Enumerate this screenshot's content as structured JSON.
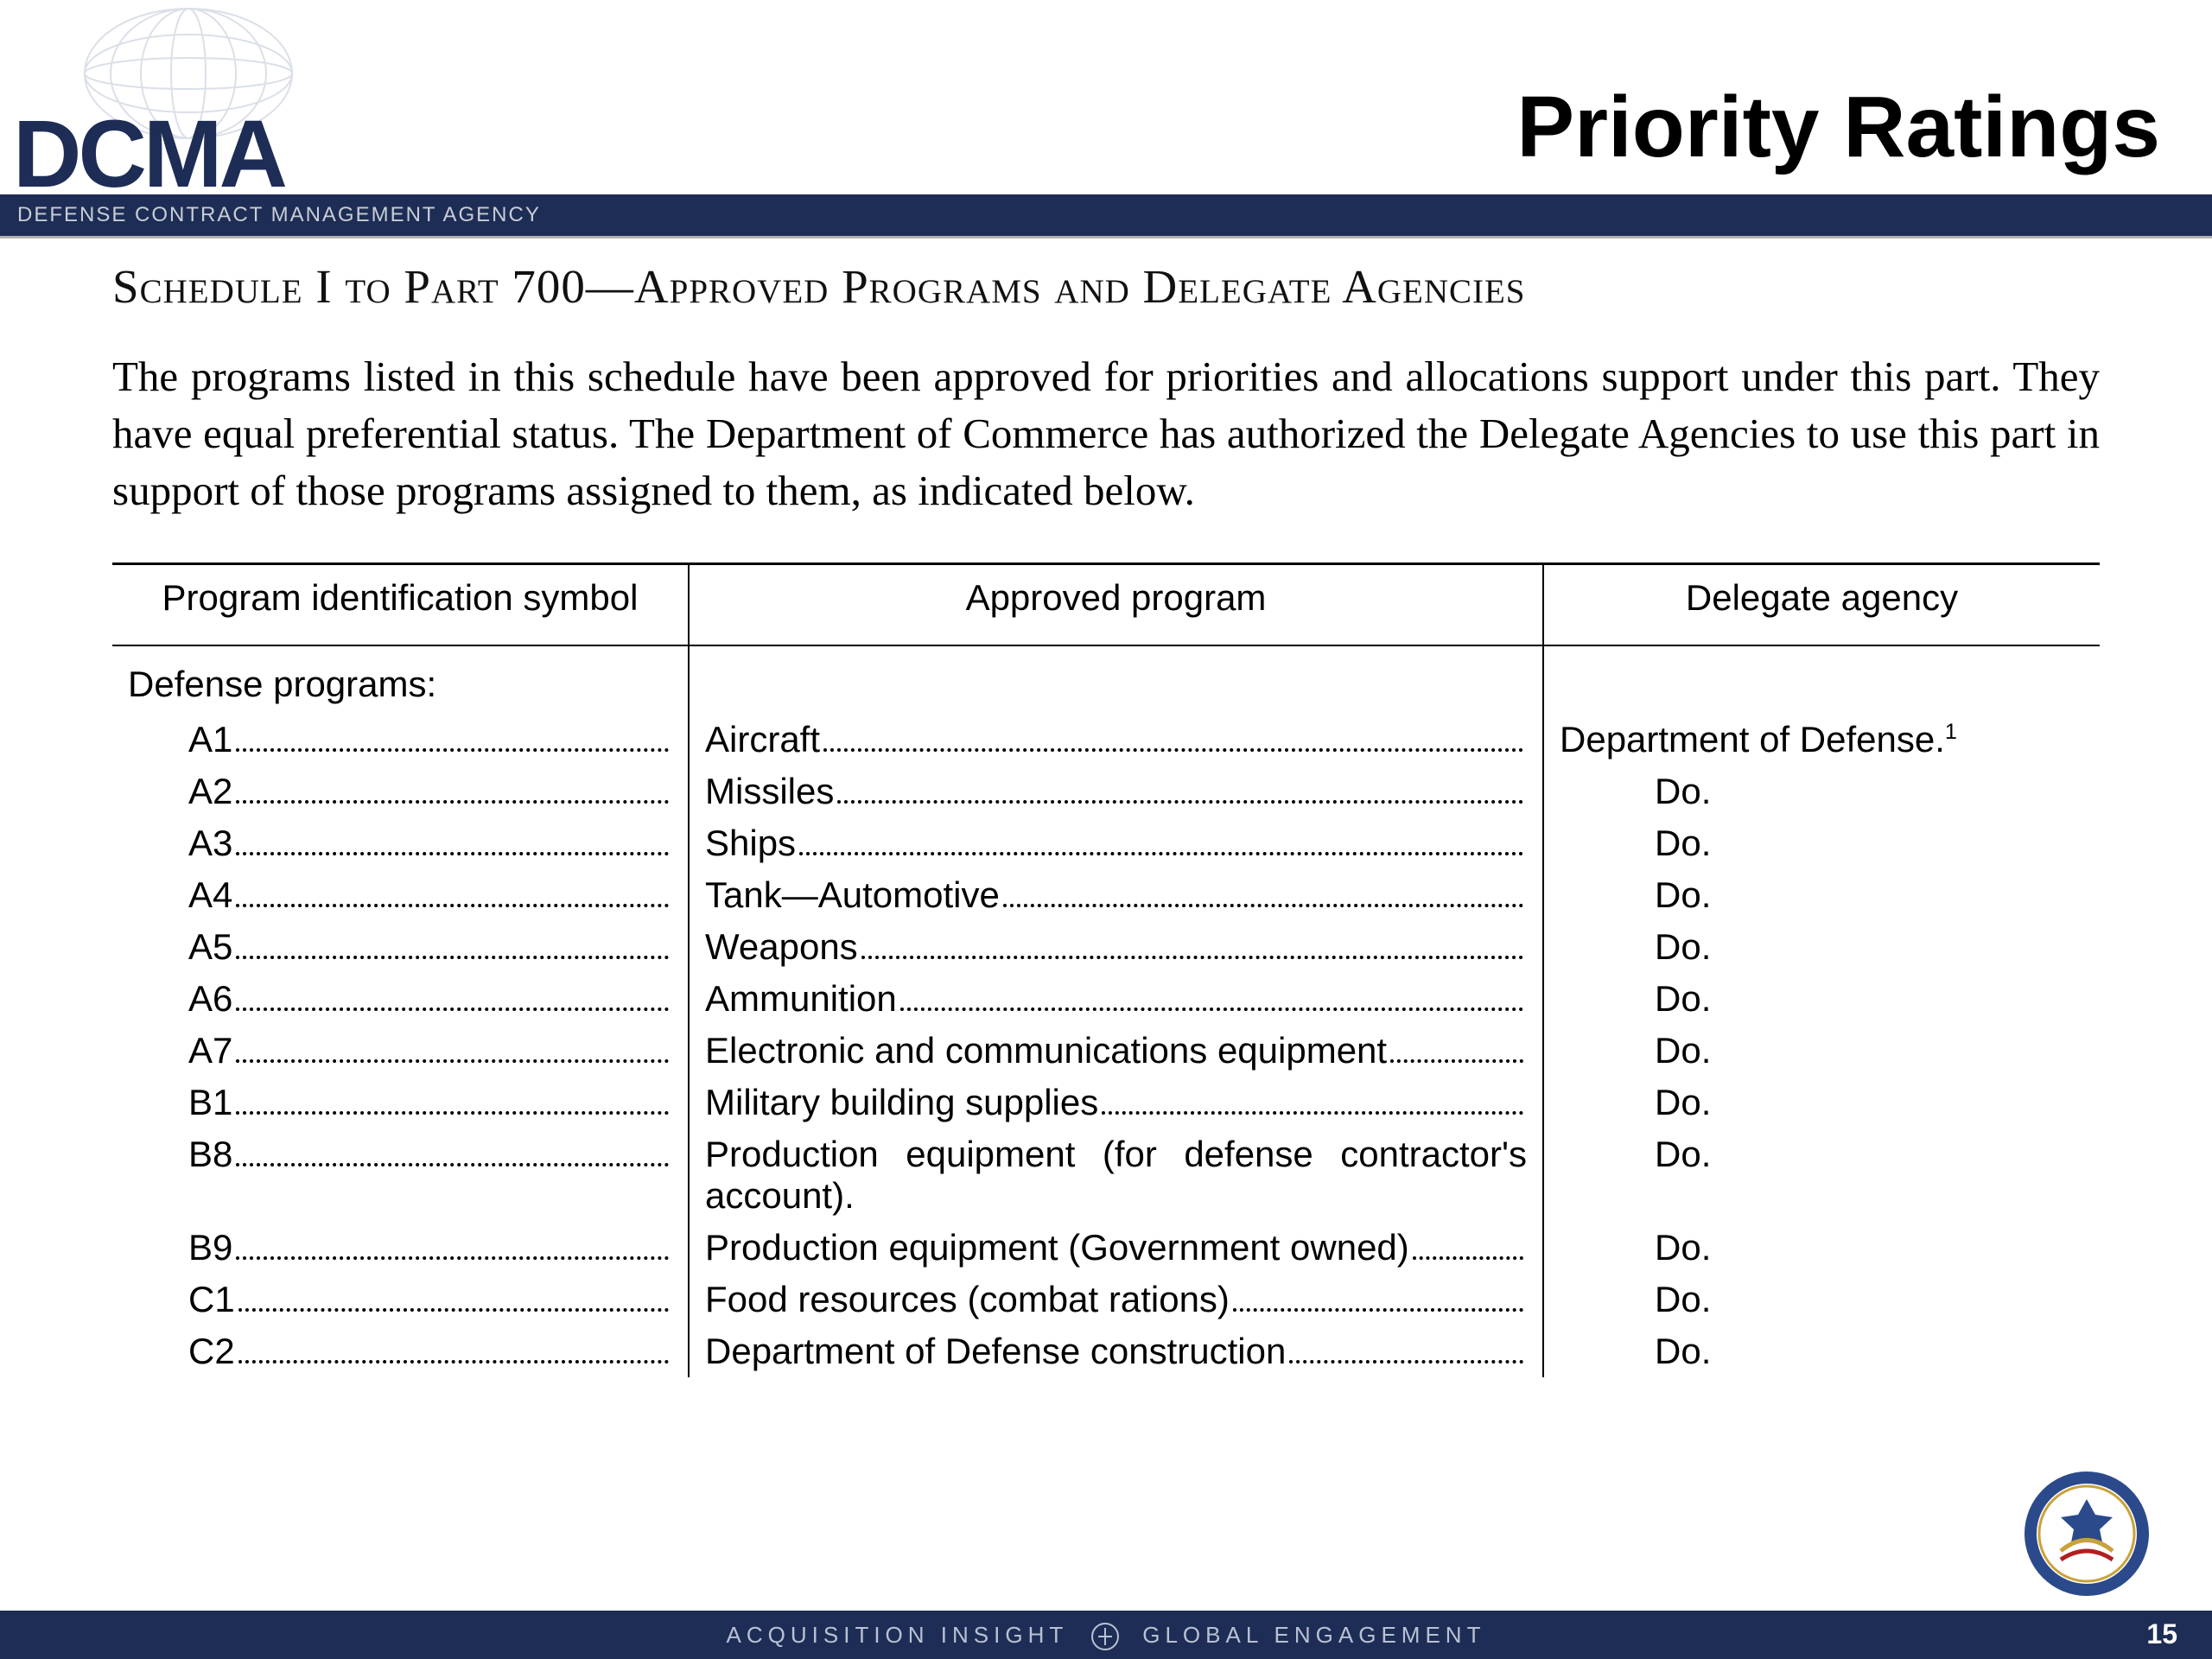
{
  "colors": {
    "brand_navy": "#1e2d55",
    "band_text": "#c8cdd6",
    "footer_text": "#b8c1d4",
    "text": "#000000",
    "background": "#ffffff",
    "rule": "#000000"
  },
  "typography": {
    "title_fontsize": 100,
    "sched_fontsize": 55,
    "intro_fontsize": 49,
    "table_fontsize": 42,
    "logo_fontsize": 110,
    "tagline_fontsize": 24,
    "footer_fontsize": 26,
    "pagenum_fontsize": 32
  },
  "logo": {
    "text": "DCMA",
    "tagline": "DEFENSE CONTRACT MANAGEMENT AGENCY"
  },
  "page_title": "Priority Ratings",
  "schedule_title": "Schedule I to Part 700—Approved Programs and Delegate Agencies",
  "intro": "The programs listed in this schedule have been approved for priorities and allocations support under this part. They have equal preferential status. The Department of Commerce has authorized the Delegate Agencies to use this part in support of those programs assigned to them, as indicated below.",
  "table": {
    "type": "table",
    "columns": [
      "Program identification symbol",
      "Approved program",
      "Delegate agency"
    ],
    "col_widths_pct": [
      29,
      43,
      28
    ],
    "category": "Defense programs:",
    "rows": [
      {
        "symbol": "A1",
        "program": "Aircraft",
        "agency": "Department of Defense.",
        "sup": "1"
      },
      {
        "symbol": "A2",
        "program": "Missiles",
        "agency": "Do."
      },
      {
        "symbol": "A3",
        "program": "Ships",
        "agency": "Do."
      },
      {
        "symbol": "A4",
        "program": "Tank—Automotive",
        "agency": "Do."
      },
      {
        "symbol": "A5",
        "program": "Weapons",
        "agency": "Do."
      },
      {
        "symbol": "A6",
        "program": "Ammunition",
        "agency": "Do."
      },
      {
        "symbol": "A7",
        "program": "Electronic and communications equipment",
        "agency": "Do."
      },
      {
        "symbol": "B1",
        "program": "Military building supplies",
        "agency": "Do."
      },
      {
        "symbol": "B8",
        "program": "Production equipment (for defense contractor's account).",
        "agency": "Do.",
        "wrap": true
      },
      {
        "symbol": "B9",
        "program": "Production equipment (Government owned)",
        "agency": "Do."
      },
      {
        "symbol": "C1",
        "program": "Food resources (combat rations)",
        "agency": "Do."
      },
      {
        "symbol": "C2",
        "program": "Department of Defense construction",
        "agency": "Do."
      }
    ]
  },
  "footer": {
    "left": "ACQUISITION INSIGHT",
    "right": "GLOBAL ENGAGEMENT",
    "page_number": "15"
  },
  "seal": {
    "outer_ring": "#2b4a8b",
    "inner": "#ffffff",
    "gold": "#c9a23a",
    "text_top": "DEFENSE CONTRACT MANAGEMENT AGENCY"
  }
}
